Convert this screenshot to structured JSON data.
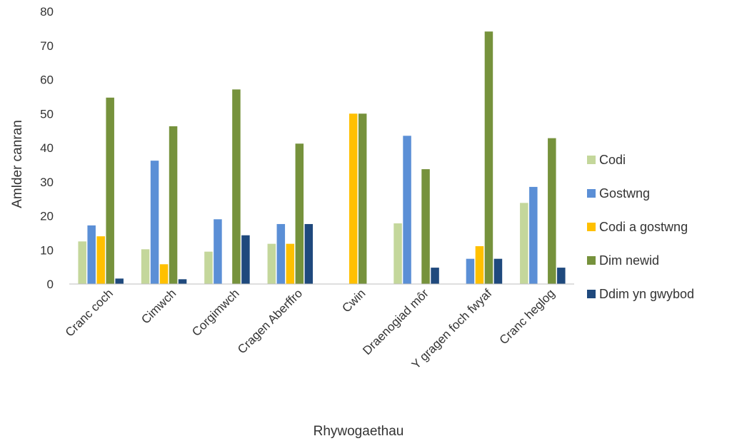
{
  "chart_data": {
    "type": "bar",
    "title": "",
    "xlabel": "Rhywogaethau",
    "ylabel": "Amlder canran",
    "ylim": [
      0,
      80
    ],
    "yticks": [
      0,
      10,
      20,
      30,
      40,
      50,
      60,
      70,
      80
    ],
    "grid": false,
    "legend_position": "right",
    "categories": [
      "Cranc coch",
      "Cimwch",
      "Corgimwch",
      "Cragen Aberffro",
      "Cwin",
      "Draenogiad môr",
      "Y gragen foch fwyaf",
      "Cranc heglog"
    ],
    "series": [
      {
        "name": "Codi",
        "color": "#c4d79b",
        "values": [
          12.5,
          10.2,
          9.5,
          11.8,
          0,
          17.8,
          0,
          23.8
        ]
      },
      {
        "name": "Gostwng",
        "color": "#5b8fd6",
        "values": [
          17.2,
          36.2,
          19.0,
          17.6,
          0,
          43.5,
          7.4,
          28.5
        ]
      },
      {
        "name": "Codi a gostwng",
        "color": "#ffc000",
        "values": [
          14.0,
          5.8,
          0,
          11.8,
          50.0,
          0,
          11.1,
          0
        ]
      },
      {
        "name": "Dim newid",
        "color": "#76923c",
        "values": [
          54.7,
          46.3,
          57.1,
          41.2,
          50.0,
          33.7,
          74.1,
          42.8
        ]
      },
      {
        "name": "Ddim yn gwybod",
        "color": "#1f497d",
        "values": [
          1.6,
          1.4,
          14.3,
          17.6,
          0,
          4.8,
          7.4,
          4.8
        ]
      }
    ]
  }
}
